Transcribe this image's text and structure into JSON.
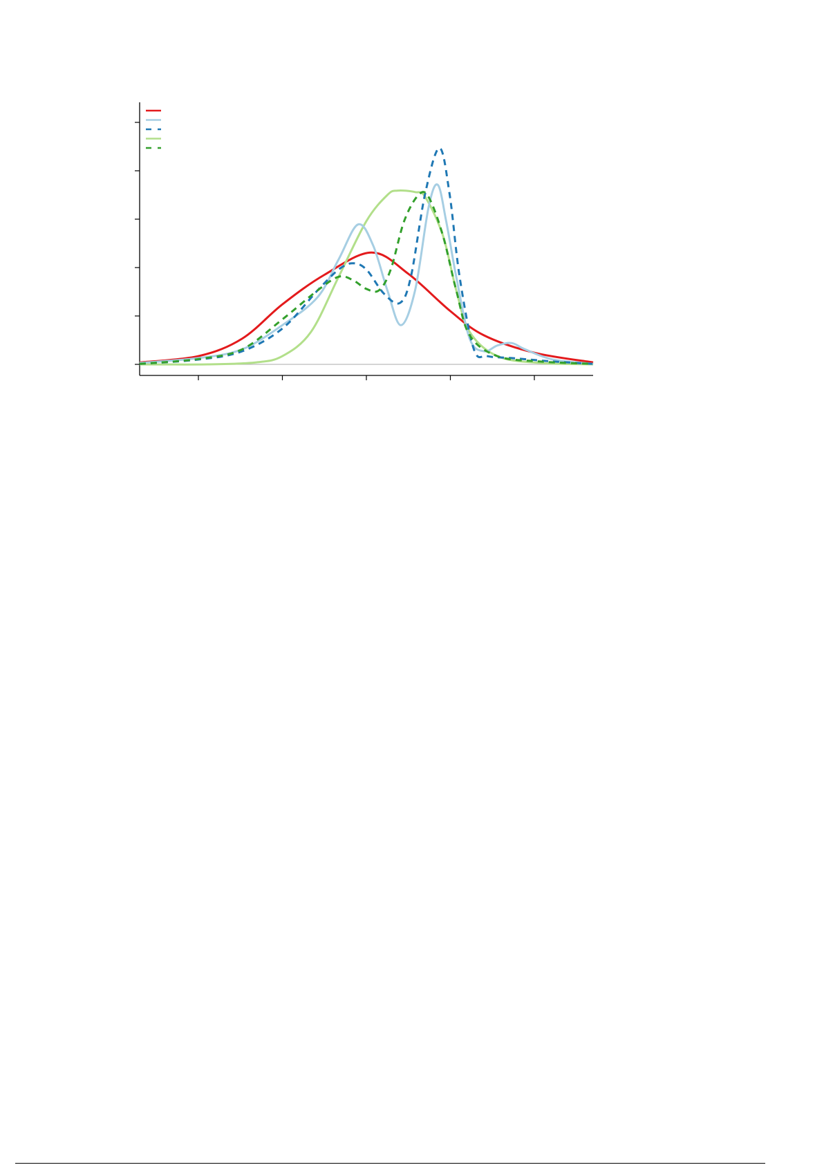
{
  "chart_data": {
    "type": "line",
    "title": "",
    "xlabel": "",
    "ylabel": "",
    "xlim": [
      -2.7,
      2.7
    ],
    "ylim": [
      -0.2,
      5.4
    ],
    "x_ticks": [
      -2,
      -1,
      0,
      1,
      2
    ],
    "y_ticks": [
      0,
      1,
      2,
      3,
      4,
      5
    ],
    "tick_labels_visible": false,
    "grid": false,
    "baseline": 0,
    "legend": {
      "placement": "top-left",
      "labels_visible": false
    },
    "series": [
      {
        "color": "#e31a1c",
        "dash": "solid",
        "points": [
          [
            -2.7,
            0.04
          ],
          [
            -2.0,
            0.17
          ],
          [
            -1.48,
            0.53
          ],
          [
            -1.0,
            1.24
          ],
          [
            -0.5,
            1.85
          ],
          [
            0.06,
            2.31
          ],
          [
            0.5,
            1.87
          ],
          [
            1.0,
            1.1
          ],
          [
            1.4,
            0.6
          ],
          [
            2.0,
            0.24
          ],
          [
            2.7,
            0.04
          ]
        ]
      },
      {
        "color": "#a6cee3",
        "dash": "solid",
        "points": [
          [
            -2.7,
            0.03
          ],
          [
            -2.0,
            0.13
          ],
          [
            -1.48,
            0.31
          ],
          [
            -1.0,
            0.81
          ],
          [
            -0.58,
            1.39
          ],
          [
            -0.33,
            2.17
          ],
          [
            -0.1,
            2.89
          ],
          [
            0.08,
            2.46
          ],
          [
            0.25,
            1.53
          ],
          [
            0.41,
            0.81
          ],
          [
            0.58,
            1.53
          ],
          [
            0.74,
            3.24
          ],
          [
            0.85,
            3.71
          ],
          [
            0.95,
            2.96
          ],
          [
            1.07,
            1.81
          ],
          [
            1.23,
            0.53
          ],
          [
            1.4,
            0.27
          ],
          [
            1.56,
            0.39
          ],
          [
            1.73,
            0.44
          ],
          [
            1.89,
            0.31
          ],
          [
            2.22,
            0.1
          ],
          [
            2.7,
            0.01
          ]
        ]
      },
      {
        "color": "#1f78b4",
        "dash": "dashed",
        "points": [
          [
            -2.7,
            0.01
          ],
          [
            -2.0,
            0.1
          ],
          [
            -1.48,
            0.27
          ],
          [
            -1.0,
            0.74
          ],
          [
            -0.58,
            1.53
          ],
          [
            -0.33,
            1.96
          ],
          [
            -0.16,
            2.09
          ],
          [
            0.0,
            1.96
          ],
          [
            0.21,
            1.46
          ],
          [
            0.4,
            1.27
          ],
          [
            0.53,
            1.81
          ],
          [
            0.7,
            3.53
          ],
          [
            0.87,
            4.47
          ],
          [
            0.99,
            3.53
          ],
          [
            1.11,
            1.81
          ],
          [
            1.28,
            0.31
          ],
          [
            1.44,
            0.17
          ],
          [
            1.73,
            0.13
          ],
          [
            2.22,
            0.06
          ],
          [
            2.7,
            0.01
          ]
        ]
      },
      {
        "color": "#b2df8a",
        "dash": "solid",
        "points": [
          [
            -2.7,
            0.0
          ],
          [
            -1.89,
            0.0
          ],
          [
            -1.32,
            0.04
          ],
          [
            -1.0,
            0.17
          ],
          [
            -0.66,
            0.67
          ],
          [
            -0.33,
            1.81
          ],
          [
            0.0,
            2.96
          ],
          [
            0.25,
            3.5
          ],
          [
            0.37,
            3.59
          ],
          [
            0.58,
            3.56
          ],
          [
            0.7,
            3.46
          ],
          [
            0.91,
            2.67
          ],
          [
            1.07,
            1.53
          ],
          [
            1.23,
            0.67
          ],
          [
            1.56,
            0.17
          ],
          [
            2.06,
            0.03
          ],
          [
            2.7,
            0.0
          ]
        ]
      },
      {
        "color": "#33a02c",
        "dash": "dashed",
        "points": [
          [
            -2.7,
            0.01
          ],
          [
            -2.0,
            0.11
          ],
          [
            -1.48,
            0.31
          ],
          [
            -1.0,
            0.93
          ],
          [
            -0.58,
            1.53
          ],
          [
            -0.33,
            1.81
          ],
          [
            -0.16,
            1.74
          ],
          [
            0.0,
            1.56
          ],
          [
            0.15,
            1.53
          ],
          [
            0.29,
            1.96
          ],
          [
            0.45,
            2.96
          ],
          [
            0.62,
            3.5
          ],
          [
            0.74,
            3.46
          ],
          [
            0.91,
            2.67
          ],
          [
            1.07,
            1.53
          ],
          [
            1.23,
            0.6
          ],
          [
            1.56,
            0.17
          ],
          [
            2.06,
            0.06
          ],
          [
            2.7,
            0.01
          ]
        ]
      }
    ]
  }
}
